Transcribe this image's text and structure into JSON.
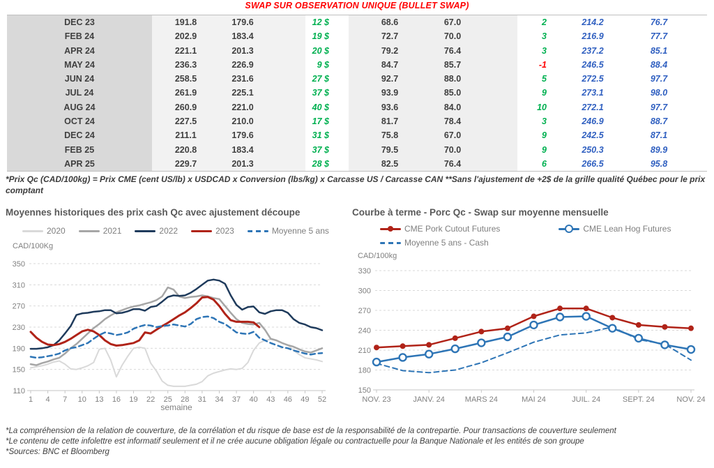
{
  "header": {
    "title": "SWAP SUR OBSERVATION UNIQUE (BULLET SWAP)"
  },
  "table": {
    "rows": [
      [
        "DEC 23",
        "191.8",
        "179.6",
        "12 $",
        "68.6",
        "67.0",
        "2",
        "214.2",
        "76.7"
      ],
      [
        "FEB 24",
        "202.9",
        "183.4",
        "19 $",
        "72.7",
        "70.0",
        "3",
        "216.9",
        "77.7"
      ],
      [
        "APR 24",
        "221.1",
        "201.3",
        "20 $",
        "79.2",
        "76.4",
        "3",
        "237.2",
        "85.1"
      ],
      [
        "MAY 24",
        "236.3",
        "226.9",
        "9 $",
        "84.7",
        "85.7",
        "-1",
        "246.5",
        "88.4"
      ],
      [
        "JUN 24",
        "258.5",
        "231.6",
        "27 $",
        "92.7",
        "88.0",
        "5",
        "272.5",
        "97.7"
      ],
      [
        "JUL 24",
        "261.9",
        "225.1",
        "37 $",
        "93.9",
        "85.0",
        "9",
        "273.1",
        "98.0"
      ],
      [
        "AUG 24",
        "260.9",
        "221.0",
        "40 $",
        "93.6",
        "84.0",
        "10",
        "272.1",
        "97.7"
      ],
      [
        "OCT 24",
        "227.5",
        "210.0",
        "17 $",
        "81.7",
        "78.4",
        "3",
        "246.9",
        "88.7"
      ],
      [
        "DEC 24",
        "211.1",
        "179.6",
        "31 $",
        "75.8",
        "67.0",
        "9",
        "242.5",
        "87.1"
      ],
      [
        "FEB 25",
        "220.8",
        "183.4",
        "37 $",
        "79.5",
        "70.0",
        "9",
        "250.3",
        "89.9"
      ],
      [
        "APR 25",
        "229.7",
        "201.3",
        "28 $",
        "82.5",
        "76.4",
        "6",
        "266.5",
        "95.8"
      ]
    ],
    "footnote": "*Prix Qc (CAD/100kg) = Prix CME (cent US/lb) x USDCAD x Conversion (lbs/kg) x Carcasse US / Carcasse CAN **Sans l'ajustement de +2$ de la grille qualité Québec pour le prix comptant"
  },
  "chart_data": [
    {
      "type": "line",
      "title": "Moyennes historiques des prix cash Qc avec ajustement découpe",
      "unit_label": "CAD/100Kg",
      "xlabel": "semaine",
      "x_count": 52,
      "x_ticks": [
        1,
        4,
        7,
        10,
        13,
        16,
        19,
        22,
        25,
        28,
        31,
        34,
        37,
        40,
        43,
        46,
        49,
        52
      ],
      "ylim": [
        110,
        350
      ],
      "y_step": 40,
      "grid": "horizontal-dashed",
      "legend_position": "top",
      "series": [
        {
          "name": "2020",
          "color": "#d9d9d9",
          "style": "solid",
          "width": 2,
          "values": [
            153,
            155,
            157,
            160,
            164,
            166,
            160,
            151,
            150,
            153,
            157,
            163,
            188,
            190,
            168,
            136,
            158,
            175,
            190,
            192,
            190,
            162,
            147,
            128,
            120,
            118,
            118,
            118,
            120,
            122,
            127,
            138,
            143,
            146,
            149,
            151,
            150,
            152,
            163,
            186,
            200,
            205,
            207,
            205,
            200,
            196,
            186,
            178,
            172,
            170,
            168,
            165
          ]
        },
        {
          "name": "2021",
          "color": "#a6a6a6",
          "style": "solid",
          "width": 2.5,
          "values": [
            160,
            158,
            162,
            165,
            169,
            172,
            180,
            190,
            198,
            208,
            218,
            228,
            236,
            245,
            252,
            258,
            262,
            266,
            269,
            271,
            274,
            277,
            281,
            288,
            305,
            301,
            288,
            285,
            287,
            288,
            290,
            288,
            285,
            283,
            270,
            257,
            245,
            238,
            236,
            235,
            238,
            225,
            208,
            205,
            200,
            196,
            193,
            188,
            184,
            182,
            186,
            190
          ]
        },
        {
          "name": "2022",
          "color": "#1f3b5c",
          "style": "solid",
          "width": 2.5,
          "values": [
            189,
            189,
            190,
            192,
            196,
            205,
            218,
            232,
            253,
            256,
            257,
            259,
            260,
            262,
            262,
            256,
            257,
            260,
            264,
            264,
            261,
            268,
            270,
            278,
            287,
            290,
            289,
            290,
            295,
            302,
            310,
            318,
            320,
            318,
            312,
            290,
            272,
            263,
            268,
            269,
            258,
            255,
            260,
            262,
            262,
            257,
            245,
            238,
            235,
            230,
            228,
            224
          ]
        },
        {
          "name": "2023",
          "color": "#b02318",
          "style": "solid",
          "width": 3,
          "values": [
            221,
            210,
            202,
            197,
            196,
            198,
            202,
            208,
            215,
            222,
            225,
            222,
            215,
            205,
            198,
            195,
            196,
            198,
            200,
            205,
            220,
            218,
            225,
            232,
            238,
            245,
            252,
            258,
            266,
            275,
            286,
            287,
            282,
            270,
            255,
            243,
            240,
            240,
            240,
            239,
            230
          ]
        },
        {
          "name": "Moyenne 5 ans",
          "color": "#2e75b6",
          "style": "dashed",
          "width": 2.5,
          "values": [
            174,
            172,
            173,
            175,
            177,
            180,
            186,
            190,
            192,
            196,
            200,
            208,
            215,
            220,
            218,
            215,
            217,
            220,
            227,
            231,
            234,
            233,
            230,
            232,
            233,
            235,
            233,
            231,
            236,
            245,
            249,
            250,
            247,
            240,
            236,
            228,
            220,
            218,
            217,
            221,
            210,
            205,
            200,
            196,
            192,
            190,
            186,
            183,
            180,
            178,
            180,
            181
          ]
        }
      ]
    },
    {
      "type": "line",
      "title": "Courbe à terme - Porc Qc - Swap sur moyenne mensuelle",
      "unit_label": "CAD/100kg",
      "x_count": 13,
      "x_labels": [
        "NOV. 23",
        "JANV. 24",
        "MARS 24",
        "MAI 24",
        "JUIL. 24",
        "SEPT. 24",
        "NOV. 24"
      ],
      "x_label_indices": [
        0,
        2,
        4,
        6,
        8,
        10,
        12
      ],
      "ylim": [
        150,
        330
      ],
      "y_step": 30,
      "grid": "horizontal-dashed",
      "legend_position": "top",
      "legend_rows": [
        [
          "CME Pork Cutout Futures",
          "CME Lean Hog Futures"
        ],
        [
          "Moyenne 5 ans - Cash"
        ]
      ],
      "series": [
        {
          "name": "CME Pork Cutout Futures",
          "color": "#b02318",
          "style": "solid",
          "marker": "dot",
          "width": 2.5,
          "values": [
            214,
            216,
            218,
            228,
            238,
            243,
            261,
            273,
            273,
            259,
            248,
            245,
            243
          ]
        },
        {
          "name": "CME Lean Hog Futures",
          "color": "#2e75b6",
          "style": "solid",
          "marker": "circle",
          "width": 2.5,
          "values": [
            192,
            199,
            204,
            212,
            221,
            230,
            248,
            260,
            261,
            243,
            228,
            218,
            211
          ]
        },
        {
          "name": "Moyenne 5 ans - Cash",
          "color": "#2e75b6",
          "style": "dashed",
          "width": 2,
          "values": [
            190,
            179,
            176,
            180,
            191,
            206,
            222,
            233,
            236,
            245,
            226,
            219,
            195
          ]
        }
      ]
    }
  ],
  "footnotes": [
    "*La compréhension de la relation de couverture, de la corrélation et du risque de base est de la responsabilité de la contrepartie. Pour transactions de couverture seulement",
    "*Le contenu de cette infolettre est informatif seulement et il ne crée aucune obligation légale ou contractuelle pour la Banque Nationale et les entités de son groupe",
    "*Sources: BNC et Bloomberg"
  ]
}
